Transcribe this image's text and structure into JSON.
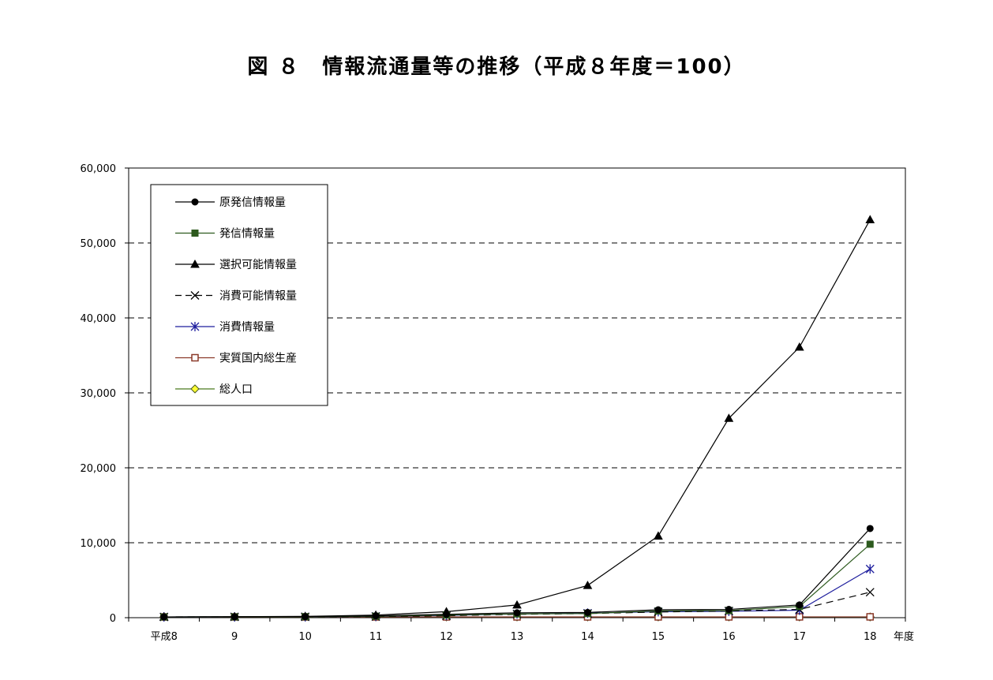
{
  "title": "図 ８　情報流通量等の推移（平成８年度＝100）",
  "chart_data": {
    "type": "line",
    "title": "図 ８　情報流通量等の推移（平成８年度＝100）",
    "x_unit_label": "年度",
    "categories": [
      "平成8",
      "9",
      "10",
      "11",
      "12",
      "13",
      "14",
      "15",
      "16",
      "17",
      "18"
    ],
    "ylim": [
      0,
      60000
    ],
    "yticks": [
      0,
      10000,
      20000,
      30000,
      40000,
      50000,
      60000
    ],
    "ytick_labels": [
      "0",
      "10,000",
      "20,000",
      "30,000",
      "40,000",
      "50,000",
      "60,000"
    ],
    "grid": "horizontal dashed",
    "legend_position": "top-left",
    "series": [
      {
        "name": "原発信情報量",
        "marker": "circle",
        "color": "#000000",
        "dash": "",
        "values": [
          100,
          120,
          150,
          250,
          450,
          650,
          700,
          1050,
          1100,
          1700,
          11900
        ]
      },
      {
        "name": "発信情報量",
        "marker": "square",
        "color": "#2d5a1e",
        "dash": "",
        "values": [
          100,
          110,
          130,
          200,
          350,
          500,
          550,
          900,
          950,
          1500,
          9800
        ]
      },
      {
        "name": "選択可能情報量",
        "marker": "triangle",
        "color": "#000000",
        "dash": "",
        "values": [
          100,
          130,
          180,
          350,
          800,
          1700,
          4300,
          10900,
          26600,
          36100,
          53100
        ]
      },
      {
        "name": "消費可能情報量",
        "marker": "x",
        "color": "#000000",
        "dash": "9,6",
        "values": [
          100,
          110,
          120,
          150,
          250,
          450,
          550,
          750,
          900,
          1100,
          3400
        ]
      },
      {
        "name": "消費情報量",
        "marker": "star",
        "color": "#1f1f9e",
        "dash": "",
        "values": [
          100,
          110,
          120,
          180,
          300,
          500,
          600,
          800,
          850,
          1000,
          6500
        ]
      },
      {
        "name": "実質国内総生産",
        "marker": "open-square",
        "color": "#8b3a2a",
        "dash": "",
        "values": [
          100,
          101,
          101,
          102,
          104,
          104,
          105,
          106,
          108,
          110,
          112
        ]
      },
      {
        "name": "総人口",
        "marker": "diamond",
        "color": "#4a7a1e",
        "dash": "",
        "values": [
          100,
          100,
          100,
          100,
          100,
          101,
          101,
          101,
          101,
          101,
          101
        ]
      }
    ]
  }
}
